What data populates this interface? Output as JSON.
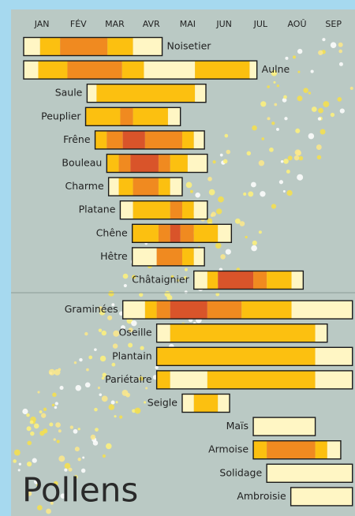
{
  "chart_data": {
    "type": "timeline",
    "title": "Pollens",
    "months": [
      "JAN",
      "FÉV",
      "MAR",
      "AVR",
      "MAI",
      "JUN",
      "JUL",
      "AOÛ",
      "SEP"
    ],
    "level_colors": [
      "#fff6c4",
      "#fcc010",
      "#f08a20",
      "#d9542a"
    ],
    "groups": [
      {
        "plants": [
          {
            "name": "Noisetier",
            "bounds": [
              0,
              0.45,
              1,
              2.3,
              3,
              3.8
            ],
            "levels": [
              1,
              2,
              3,
              2,
              1
            ]
          },
          {
            "name": "Aulne",
            "bounds": [
              0,
              0.4,
              1.2,
              2.7,
              3.3,
              4.7,
              6.2,
              6.4
            ],
            "levels": [
              1,
              2,
              3,
              2,
              1,
              2,
              1
            ]
          },
          {
            "name": "Saule",
            "bounds": [
              1.74,
              2.0,
              4.7,
              5.0
            ],
            "levels": [
              1,
              2,
              1
            ]
          },
          {
            "name": "Peuplier",
            "bounds": [
              1.7,
              2.65,
              3.0,
              3.96,
              4.3
            ],
            "levels": [
              2,
              3,
              2,
              1
            ]
          },
          {
            "name": "Frêne",
            "bounds": [
              1.96,
              2.28,
              2.72,
              3.33,
              4.35,
              4.67,
              4.96
            ],
            "levels": [
              2,
              3,
              4,
              3,
              2,
              1
            ]
          },
          {
            "name": "Bouleau",
            "bounds": [
              2.28,
              2.61,
              2.93,
              3.7,
              4.02,
              4.5,
              5.04
            ],
            "levels": [
              2,
              3,
              4,
              3,
              2,
              1
            ]
          },
          {
            "name": "Charme",
            "bounds": [
              2.33,
              2.61,
              3.0,
              3.7,
              4.02,
              4.35
            ],
            "levels": [
              1,
              2,
              3,
              2,
              1
            ]
          },
          {
            "name": "Platane",
            "bounds": [
              2.65,
              3.0,
              4.02,
              4.35,
              4.67,
              5.04
            ],
            "levels": [
              1,
              2,
              3,
              2,
              1
            ]
          },
          {
            "name": "Chêne",
            "bounds": [
              2.98,
              3.7,
              4.02,
              4.3,
              4.67,
              5.33,
              5.7
            ],
            "levels": [
              2,
              3,
              4,
              3,
              2,
              1
            ]
          },
          {
            "name": "Hêtre",
            "bounds": [
              2.98,
              3.65,
              4.35,
              4.67,
              4.96
            ],
            "levels": [
              1,
              3,
              2,
              1
            ]
          },
          {
            "name": "Châtaignier",
            "bounds": [
              4.67,
              5.04,
              5.33,
              6.3,
              6.67,
              7.35,
              7.67
            ],
            "levels": [
              1,
              2,
              4,
              3,
              2,
              1
            ]
          }
        ]
      },
      {
        "plants": [
          {
            "name": "Graminées",
            "bounds": [
              2.72,
              3.33,
              3.65,
              4.02,
              5.04,
              5.98,
              7.35,
              9.02
            ],
            "levels": [
              1,
              2,
              3,
              4,
              3,
              2,
              1
            ]
          },
          {
            "name": "Oseille",
            "bounds": [
              3.65,
              4.02,
              8.0,
              8.33
            ],
            "levels": [
              1,
              2,
              1
            ]
          },
          {
            "name": "Plantain",
            "bounds": [
              3.65,
              8.0,
              9.02
            ],
            "levels": [
              2,
              1
            ]
          },
          {
            "name": "Pariétaire",
            "bounds": [
              3.65,
              4.02,
              5.04,
              8.0,
              9.02
            ],
            "levels": [
              2,
              1,
              2,
              1
            ]
          },
          {
            "name": "Seigle",
            "bounds": [
              4.35,
              4.67,
              5.33,
              5.65
            ],
            "levels": [
              1,
              2,
              1
            ]
          },
          {
            "name": "Maïs",
            "bounds": [
              6.3,
              8.0
            ],
            "levels": [
              1
            ]
          },
          {
            "name": "Armoise",
            "bounds": [
              6.3,
              6.67,
              8.0,
              8.33,
              8.7
            ],
            "levels": [
              2,
              3,
              2,
              1
            ]
          },
          {
            "name": "Solidage",
            "bounds": [
              6.67,
              9.02
            ],
            "levels": [
              1
            ]
          },
          {
            "name": "Ambroisie",
            "bounds": [
              7.33,
              9.02
            ],
            "levels": [
              1
            ]
          }
        ]
      }
    ]
  }
}
